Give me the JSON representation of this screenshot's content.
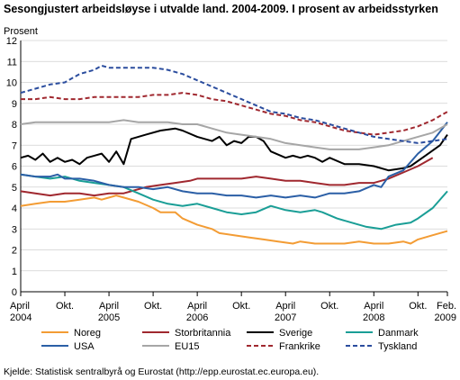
{
  "chart_data": {
    "type": "line",
    "title": "Sesongjustert arbeidsløyse i utvalde land. 2004-2009. I prosent av arbeidsstyrken",
    "ylabel": "Prosent",
    "ylim": [
      0,
      12
    ],
    "yticks": [
      "0",
      "1",
      "2",
      "3",
      "4",
      "5",
      "6",
      "7",
      "8",
      "9",
      "10",
      "11",
      "12"
    ],
    "xlim": [
      0,
      58
    ],
    "xticks": [
      {
        "x": 0,
        "line1": "April",
        "line2": "2004"
      },
      {
        "x": 6,
        "line1": "Okt.",
        "line2": ""
      },
      {
        "x": 12,
        "line1": "April",
        "line2": "2005"
      },
      {
        "x": 18,
        "line1": "Okt.",
        "line2": ""
      },
      {
        "x": 24,
        "line1": "April",
        "line2": "2006"
      },
      {
        "x": 30,
        "line1": "Okt.",
        "line2": ""
      },
      {
        "x": 36,
        "line1": "April",
        "line2": "2007"
      },
      {
        "x": 42,
        "line1": "Okt.",
        "line2": ""
      },
      {
        "x": 48,
        "line1": "April",
        "line2": "2008"
      },
      {
        "x": 54,
        "line1": "Okt.",
        "line2": ""
      },
      {
        "x": 58,
        "line1": "Feb.",
        "line2": "2009"
      }
    ],
    "grid": true,
    "legend_position": "bottom",
    "series": [
      {
        "name": "Noreg",
        "color": "#f39c34",
        "dash": "solid",
        "points": [
          [
            0,
            4.1
          ],
          [
            2,
            4.2
          ],
          [
            4,
            4.3
          ],
          [
            6,
            4.3
          ],
          [
            8,
            4.4
          ],
          [
            10,
            4.5
          ],
          [
            11,
            4.4
          ],
          [
            12,
            4.5
          ],
          [
            13,
            4.6
          ],
          [
            14,
            4.5
          ],
          [
            16,
            4.3
          ],
          [
            18,
            4.0
          ],
          [
            19,
            3.8
          ],
          [
            21,
            3.8
          ],
          [
            22,
            3.5
          ],
          [
            24,
            3.2
          ],
          [
            26,
            3.0
          ],
          [
            27,
            2.8
          ],
          [
            29,
            2.7
          ],
          [
            31,
            2.6
          ],
          [
            33,
            2.5
          ],
          [
            35,
            2.4
          ],
          [
            37,
            2.3
          ],
          [
            38,
            2.4
          ],
          [
            40,
            2.3
          ],
          [
            42,
            2.3
          ],
          [
            44,
            2.3
          ],
          [
            46,
            2.4
          ],
          [
            48,
            2.3
          ],
          [
            50,
            2.3
          ],
          [
            52,
            2.4
          ],
          [
            53,
            2.3
          ],
          [
            54,
            2.5
          ],
          [
            56,
            2.7
          ],
          [
            58,
            2.9
          ]
        ]
      },
      {
        "name": "Storbritannia",
        "color": "#a0282f",
        "dash": "solid",
        "points": [
          [
            0,
            4.8
          ],
          [
            2,
            4.7
          ],
          [
            4,
            4.6
          ],
          [
            6,
            4.7
          ],
          [
            8,
            4.7
          ],
          [
            10,
            4.6
          ],
          [
            12,
            4.7
          ],
          [
            14,
            4.7
          ],
          [
            16,
            4.9
          ],
          [
            17,
            5.0
          ],
          [
            19,
            5.1
          ],
          [
            21,
            5.2
          ],
          [
            23,
            5.3
          ],
          [
            24,
            5.4
          ],
          [
            26,
            5.4
          ],
          [
            28,
            5.4
          ],
          [
            30,
            5.4
          ],
          [
            32,
            5.5
          ],
          [
            34,
            5.4
          ],
          [
            36,
            5.3
          ],
          [
            38,
            5.3
          ],
          [
            40,
            5.2
          ],
          [
            42,
            5.1
          ],
          [
            44,
            5.1
          ],
          [
            46,
            5.2
          ],
          [
            48,
            5.2
          ],
          [
            49,
            5.3
          ],
          [
            50,
            5.4
          ],
          [
            52,
            5.7
          ],
          [
            54,
            6.0
          ],
          [
            56,
            6.4
          ]
        ]
      },
      {
        "name": "Sverige",
        "color": "#000000",
        "dash": "solid",
        "points": [
          [
            0,
            6.4
          ],
          [
            1,
            6.5
          ],
          [
            2,
            6.3
          ],
          [
            3,
            6.6
          ],
          [
            4,
            6.2
          ],
          [
            5,
            6.4
          ],
          [
            6,
            6.2
          ],
          [
            7,
            6.3
          ],
          [
            8,
            6.1
          ],
          [
            9,
            6.4
          ],
          [
            10,
            6.5
          ],
          [
            11,
            6.6
          ],
          [
            12,
            6.2
          ],
          [
            13,
            6.7
          ],
          [
            14,
            6.1
          ],
          [
            15,
            7.3
          ],
          [
            17,
            7.5
          ],
          [
            19,
            7.7
          ],
          [
            21,
            7.8
          ],
          [
            22,
            7.7
          ],
          [
            24,
            7.4
          ],
          [
            26,
            7.2
          ],
          [
            27,
            7.4
          ],
          [
            28,
            7.0
          ],
          [
            29,
            7.2
          ],
          [
            30,
            7.1
          ],
          [
            31,
            7.4
          ],
          [
            32,
            7.4
          ],
          [
            33,
            7.2
          ],
          [
            34,
            6.7
          ],
          [
            36,
            6.4
          ],
          [
            37,
            6.5
          ],
          [
            38,
            6.4
          ],
          [
            39,
            6.5
          ],
          [
            40,
            6.4
          ],
          [
            41,
            6.2
          ],
          [
            42,
            6.4
          ],
          [
            44,
            6.1
          ],
          [
            46,
            6.1
          ],
          [
            48,
            6.0
          ],
          [
            50,
            5.8
          ],
          [
            52,
            5.9
          ],
          [
            53,
            6.0
          ],
          [
            55,
            6.5
          ],
          [
            57,
            7.0
          ],
          [
            58,
            7.5
          ]
        ]
      },
      {
        "name": "Danmark",
        "color": "#1a9e96",
        "dash": "solid",
        "points": [
          [
            0,
            5.6
          ],
          [
            2,
            5.5
          ],
          [
            4,
            5.4
          ],
          [
            6,
            5.5
          ],
          [
            8,
            5.3
          ],
          [
            10,
            5.2
          ],
          [
            12,
            5.1
          ],
          [
            14,
            5.0
          ],
          [
            16,
            4.7
          ],
          [
            18,
            4.4
          ],
          [
            20,
            4.2
          ],
          [
            22,
            4.1
          ],
          [
            24,
            4.2
          ],
          [
            26,
            4.0
          ],
          [
            28,
            3.8
          ],
          [
            30,
            3.7
          ],
          [
            32,
            3.8
          ],
          [
            34,
            4.1
          ],
          [
            36,
            3.9
          ],
          [
            38,
            3.8
          ],
          [
            40,
            3.9
          ],
          [
            41,
            3.8
          ],
          [
            43,
            3.5
          ],
          [
            45,
            3.3
          ],
          [
            47,
            3.1
          ],
          [
            49,
            3.0
          ],
          [
            51,
            3.2
          ],
          [
            53,
            3.3
          ],
          [
            54,
            3.5
          ],
          [
            56,
            4.0
          ],
          [
            58,
            4.8
          ]
        ]
      },
      {
        "name": "USA",
        "color": "#2b5fa6",
        "dash": "solid",
        "points": [
          [
            0,
            5.6
          ],
          [
            2,
            5.5
          ],
          [
            4,
            5.5
          ],
          [
            5,
            5.6
          ],
          [
            6,
            5.4
          ],
          [
            8,
            5.4
          ],
          [
            10,
            5.3
          ],
          [
            12,
            5.1
          ],
          [
            14,
            5.0
          ],
          [
            16,
            5.0
          ],
          [
            18,
            4.9
          ],
          [
            20,
            5.0
          ],
          [
            22,
            4.8
          ],
          [
            24,
            4.7
          ],
          [
            26,
            4.7
          ],
          [
            28,
            4.6
          ],
          [
            30,
            4.6
          ],
          [
            32,
            4.5
          ],
          [
            34,
            4.6
          ],
          [
            36,
            4.5
          ],
          [
            38,
            4.6
          ],
          [
            40,
            4.5
          ],
          [
            42,
            4.7
          ],
          [
            44,
            4.7
          ],
          [
            46,
            4.8
          ],
          [
            48,
            5.1
          ],
          [
            49,
            5.0
          ],
          [
            50,
            5.5
          ],
          [
            52,
            5.8
          ],
          [
            54,
            6.6
          ],
          [
            56,
            7.2
          ],
          [
            58,
            8.1
          ]
        ]
      },
      {
        "name": "EU15",
        "color": "#a6a6a6",
        "dash": "solid",
        "points": [
          [
            0,
            8.0
          ],
          [
            2,
            8.1
          ],
          [
            4,
            8.1
          ],
          [
            6,
            8.1
          ],
          [
            8,
            8.1
          ],
          [
            10,
            8.1
          ],
          [
            12,
            8.1
          ],
          [
            14,
            8.2
          ],
          [
            16,
            8.1
          ],
          [
            18,
            8.1
          ],
          [
            20,
            8.1
          ],
          [
            22,
            8.0
          ],
          [
            24,
            8.0
          ],
          [
            26,
            7.8
          ],
          [
            28,
            7.6
          ],
          [
            30,
            7.5
          ],
          [
            32,
            7.4
          ],
          [
            34,
            7.3
          ],
          [
            36,
            7.1
          ],
          [
            38,
            7.0
          ],
          [
            40,
            6.9
          ],
          [
            42,
            6.8
          ],
          [
            44,
            6.8
          ],
          [
            46,
            6.8
          ],
          [
            48,
            6.9
          ],
          [
            50,
            7.0
          ],
          [
            52,
            7.2
          ],
          [
            54,
            7.4
          ],
          [
            56,
            7.6
          ],
          [
            58,
            8.0
          ]
        ]
      },
      {
        "name": "Frankrike",
        "color": "#a0282f",
        "dash": "dashed",
        "points": [
          [
            0,
            9.2
          ],
          [
            2,
            9.2
          ],
          [
            4,
            9.3
          ],
          [
            6,
            9.2
          ],
          [
            8,
            9.2
          ],
          [
            10,
            9.3
          ],
          [
            12,
            9.3
          ],
          [
            14,
            9.3
          ],
          [
            16,
            9.3
          ],
          [
            18,
            9.4
          ],
          [
            20,
            9.4
          ],
          [
            22,
            9.5
          ],
          [
            24,
            9.4
          ],
          [
            26,
            9.2
          ],
          [
            28,
            9.1
          ],
          [
            30,
            8.9
          ],
          [
            32,
            8.7
          ],
          [
            34,
            8.5
          ],
          [
            36,
            8.4
          ],
          [
            38,
            8.2
          ],
          [
            40,
            8.1
          ],
          [
            42,
            7.9
          ],
          [
            44,
            7.7
          ],
          [
            46,
            7.6
          ],
          [
            48,
            7.5
          ],
          [
            50,
            7.6
          ],
          [
            52,
            7.7
          ],
          [
            54,
            7.9
          ],
          [
            56,
            8.2
          ],
          [
            58,
            8.6
          ]
        ]
      },
      {
        "name": "Tyskland",
        "color": "#2b4d9e",
        "dash": "dashed",
        "points": [
          [
            0,
            9.5
          ],
          [
            2,
            9.7
          ],
          [
            4,
            9.9
          ],
          [
            6,
            10.0
          ],
          [
            8,
            10.4
          ],
          [
            10,
            10.6
          ],
          [
            11,
            10.8
          ],
          [
            12,
            10.7
          ],
          [
            14,
            10.7
          ],
          [
            16,
            10.7
          ],
          [
            18,
            10.7
          ],
          [
            20,
            10.6
          ],
          [
            22,
            10.4
          ],
          [
            24,
            10.1
          ],
          [
            26,
            9.8
          ],
          [
            28,
            9.5
          ],
          [
            30,
            9.2
          ],
          [
            32,
            8.9
          ],
          [
            34,
            8.6
          ],
          [
            36,
            8.5
          ],
          [
            38,
            8.3
          ],
          [
            40,
            8.2
          ],
          [
            42,
            8.0
          ],
          [
            44,
            7.8
          ],
          [
            46,
            7.6
          ],
          [
            48,
            7.4
          ],
          [
            50,
            7.3
          ],
          [
            52,
            7.2
          ],
          [
            54,
            7.1
          ],
          [
            56,
            7.2
          ],
          [
            58,
            7.3
          ]
        ]
      }
    ]
  },
  "source": "Kjelde: Statistisk sentralbyrå og Eurostat (http://epp.eurostat.ec.europa.eu)."
}
